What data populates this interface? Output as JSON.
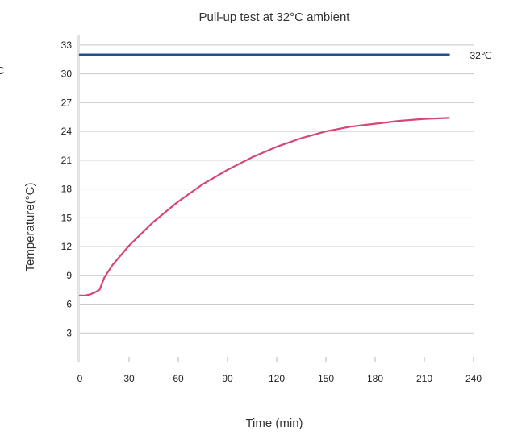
{
  "chart_data": {
    "type": "line",
    "title": "Pull-up test at 32°C ambient",
    "xlabel": "Time (min)",
    "ylabel": "Temperature(°C)",
    "ylabel_partial_left": "C",
    "xlim": [
      0,
      240
    ],
    "ylim": [
      0,
      34
    ],
    "x_ticks": [
      0,
      30,
      60,
      90,
      120,
      150,
      180,
      210,
      240
    ],
    "y_ticks": [
      3,
      6,
      9,
      12,
      15,
      18,
      21,
      24,
      27,
      30,
      33
    ],
    "grid": "horizontal",
    "series": [
      {
        "name": "32℃",
        "color": "#1f4e9a",
        "x": [
          0,
          225
        ],
        "y": [
          32,
          32
        ]
      },
      {
        "color": "#d6457a",
        "x": [
          0,
          3,
          6,
          9,
          12,
          15,
          20,
          30,
          45,
          60,
          75,
          90,
          105,
          120,
          135,
          150,
          165,
          180,
          195,
          210,
          225
        ],
        "y": [
          6.9,
          6.9,
          7.0,
          7.2,
          7.5,
          8.8,
          10.1,
          12.1,
          14.6,
          16.7,
          18.5,
          20.0,
          21.3,
          22.4,
          23.3,
          24.0,
          24.5,
          24.8,
          25.1,
          25.3,
          25.4
        ]
      }
    ]
  }
}
